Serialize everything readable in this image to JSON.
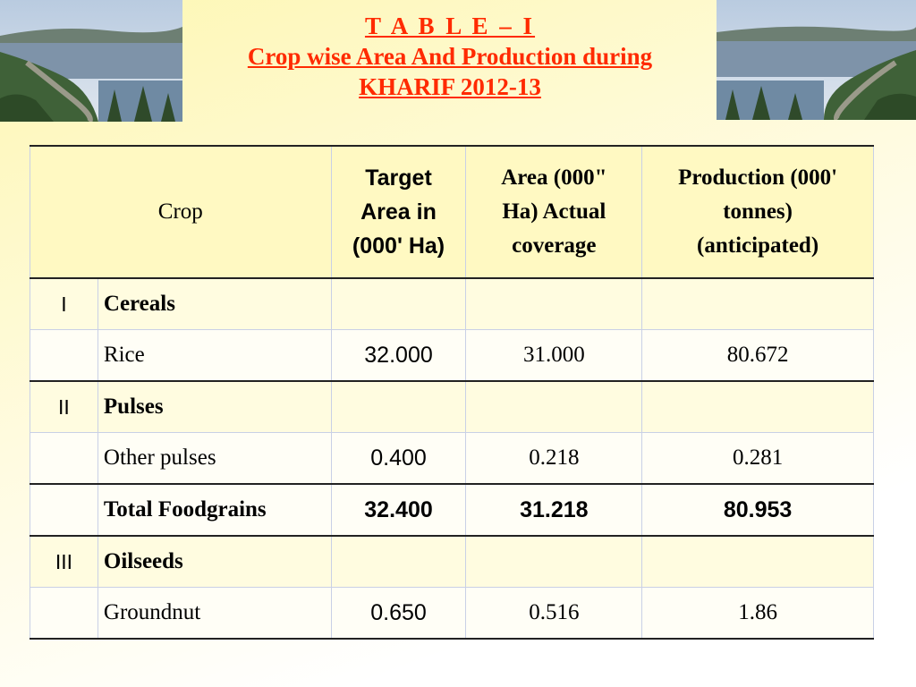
{
  "title": {
    "line1": "T A B L E – I",
    "line2": " Crop wise Area And Production during",
    "line3": "KHARIF 2012-13"
  },
  "table": {
    "headers": {
      "crop": "Crop",
      "target": [
        "Target",
        "Area in",
        "(000' Ha)"
      ],
      "area": [
        "Area (000\"",
        "Ha) Actual",
        "coverage"
      ],
      "production": [
        "Production (000'",
        "tonnes)",
        "(anticipated)"
      ]
    },
    "rows": [
      {
        "roman": "I",
        "name": "Cereals",
        "target": "",
        "area": "",
        "production": ""
      },
      {
        "roman": "",
        "name": "Rice",
        "target": "32.000",
        "area": "31.000",
        "production": "80.672"
      },
      {
        "roman": "II",
        "name": "Pulses",
        "target": "",
        "area": "",
        "production": ""
      },
      {
        "roman": "",
        "name": "Other pulses",
        "target": "0.400",
        "area": "0.218",
        "production": "0.281"
      },
      {
        "roman": "",
        "name": "Total Foodgrains",
        "target": "32.400",
        "area": "31.218",
        "production": "80.953"
      },
      {
        "roman": "III",
        "name": "Oilseeds",
        "target": "",
        "area": "",
        "production": ""
      },
      {
        "roman": "",
        "name": "Groundnut",
        "target": "0.650",
        "area": "0.516",
        "production": "1.86"
      }
    ]
  }
}
